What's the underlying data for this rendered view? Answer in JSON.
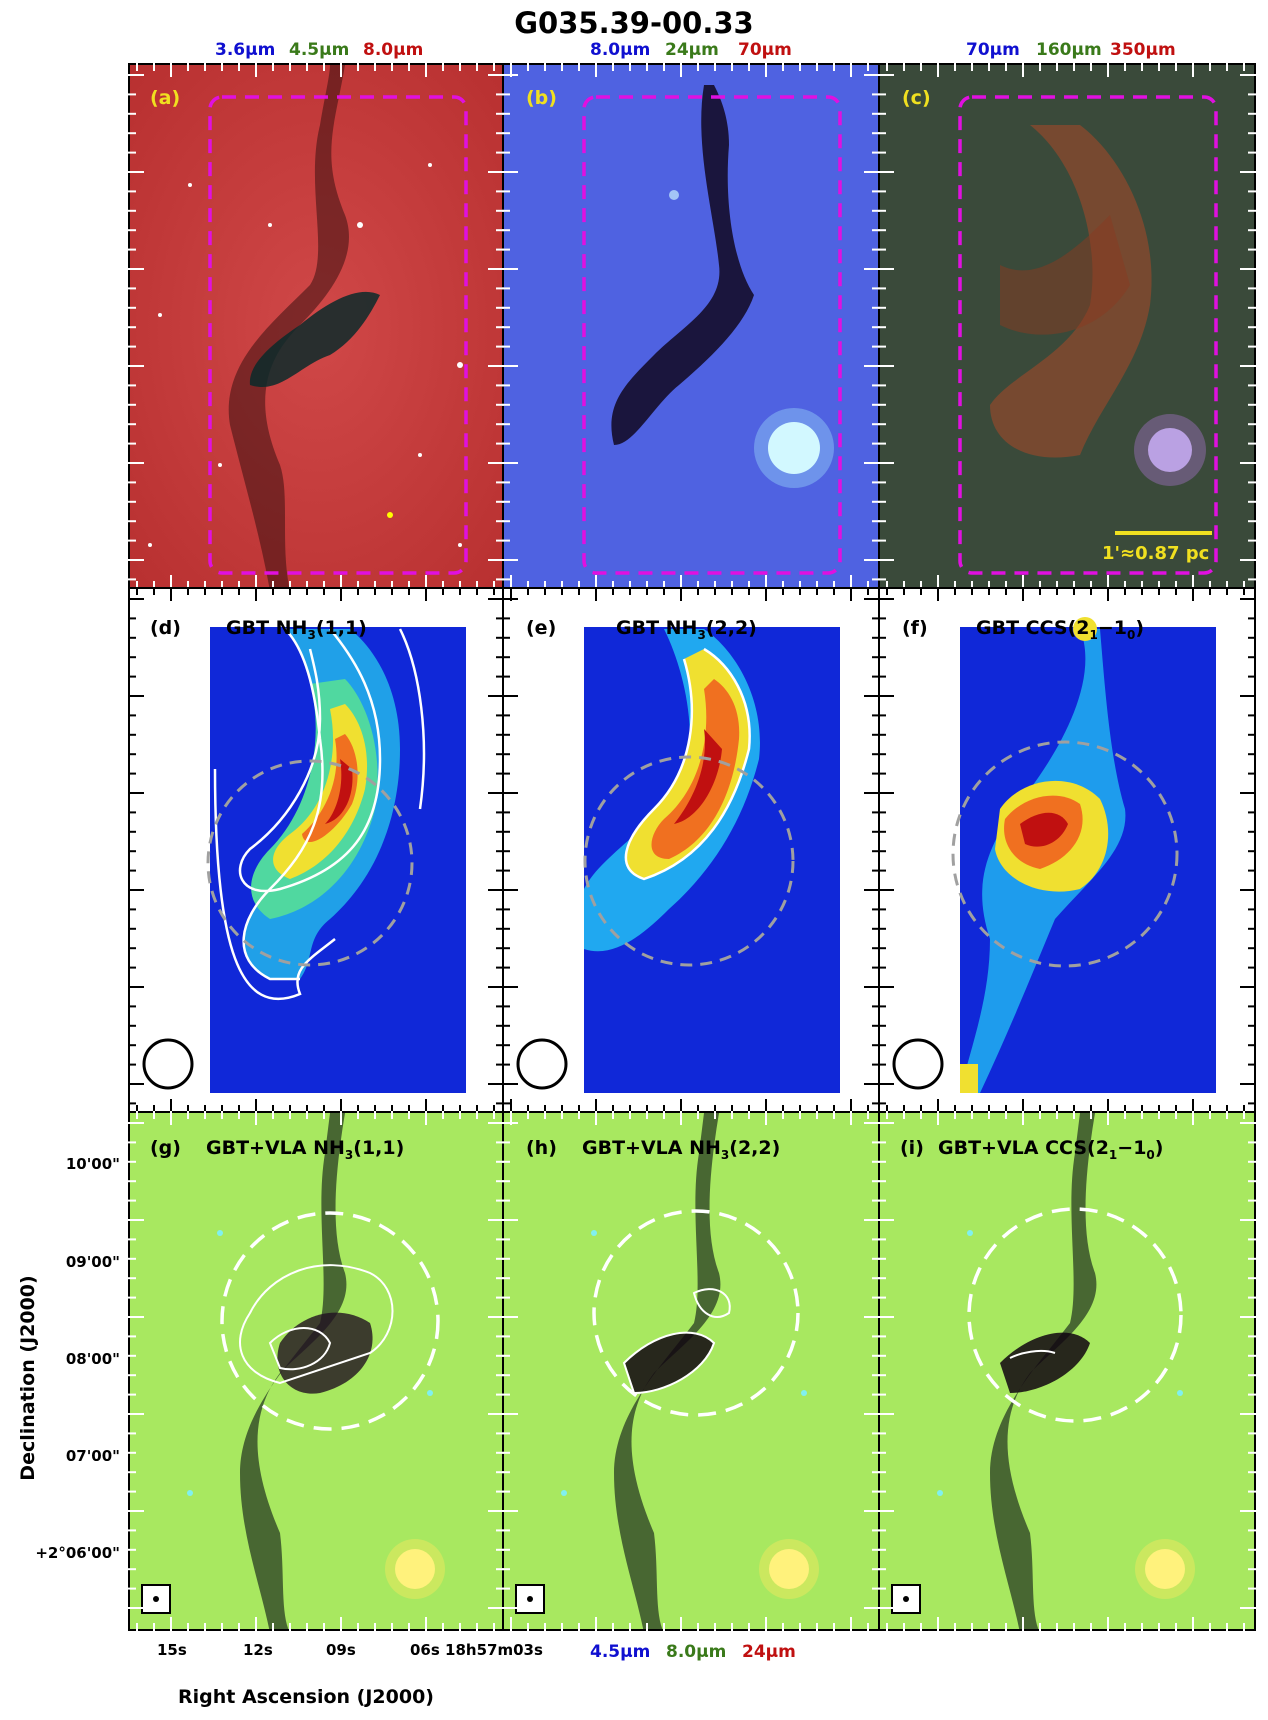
{
  "title": "G035.39-00.33",
  "top_bands": [
    {
      "label": "3.6μm",
      "color": "#1010d0"
    },
    {
      "label": "4.5μm",
      "color": "#3a7a1a"
    },
    {
      "label": "8.0μm",
      "color": "#c01010"
    },
    {
      "label": "8.0μm",
      "color": "#1010d0"
    },
    {
      "label": "24μm",
      "color": "#3a7a1a"
    },
    {
      "label": "70μm",
      "color": "#c01010"
    },
    {
      "label": "70μm",
      "color": "#1010d0"
    },
    {
      "label": "160μm",
      "color": "#3a7a1a"
    },
    {
      "label": "350μm",
      "color": "#c01010"
    }
  ],
  "bottom_bands": [
    {
      "label": "4.5μm",
      "color": "#1010d0"
    },
    {
      "label": "8.0μm",
      "color": "#3a7a1a"
    },
    {
      "label": "24μm",
      "color": "#c01010"
    }
  ],
  "panels": {
    "a": {
      "tag": "(a)",
      "name": ""
    },
    "b": {
      "tag": "(b)",
      "name": ""
    },
    "c": {
      "tag": "(c)",
      "name": ""
    },
    "d": {
      "tag": "(d)",
      "name": "GBT NH",
      "sub": "3",
      "rest": "(1,1)"
    },
    "e": {
      "tag": "(e)",
      "name": "GBT NH",
      "sub": "3",
      "rest": "(2,2)"
    },
    "f": {
      "tag": "(f)",
      "name": "GBT CCS(2",
      "sub": "1",
      "mid": "−1",
      "sub2": "0",
      "rest": ")"
    },
    "g": {
      "tag": "(g)",
      "name": "GBT+VLA NH",
      "sub": "3",
      "rest": "(1,1)"
    },
    "h": {
      "tag": "(h)",
      "name": "GBT+VLA NH",
      "sub": "3",
      "rest": "(2,2)"
    },
    "i": {
      "tag": "(i)",
      "name": "GBT+VLA CCS(2",
      "sub": "1",
      "mid": "−1",
      "sub2": "0",
      "rest": ")"
    }
  },
  "scalebar": "1'≈0.87 pc",
  "dec_ticks": [
    "10'00\"",
    "09'00\"",
    "08'00\"",
    "07'00\"",
    "+2°06'00\""
  ],
  "ra_ticks": [
    "15s",
    "12s",
    "09s",
    "06s 18h57m03s"
  ],
  "xaxis_title": "Right Ascension (J2000)",
  "yaxis_title": "Declination (J2000)",
  "colors": {
    "tag_yellow": "#f0e020",
    "magenta": "#e010e0"
  }
}
